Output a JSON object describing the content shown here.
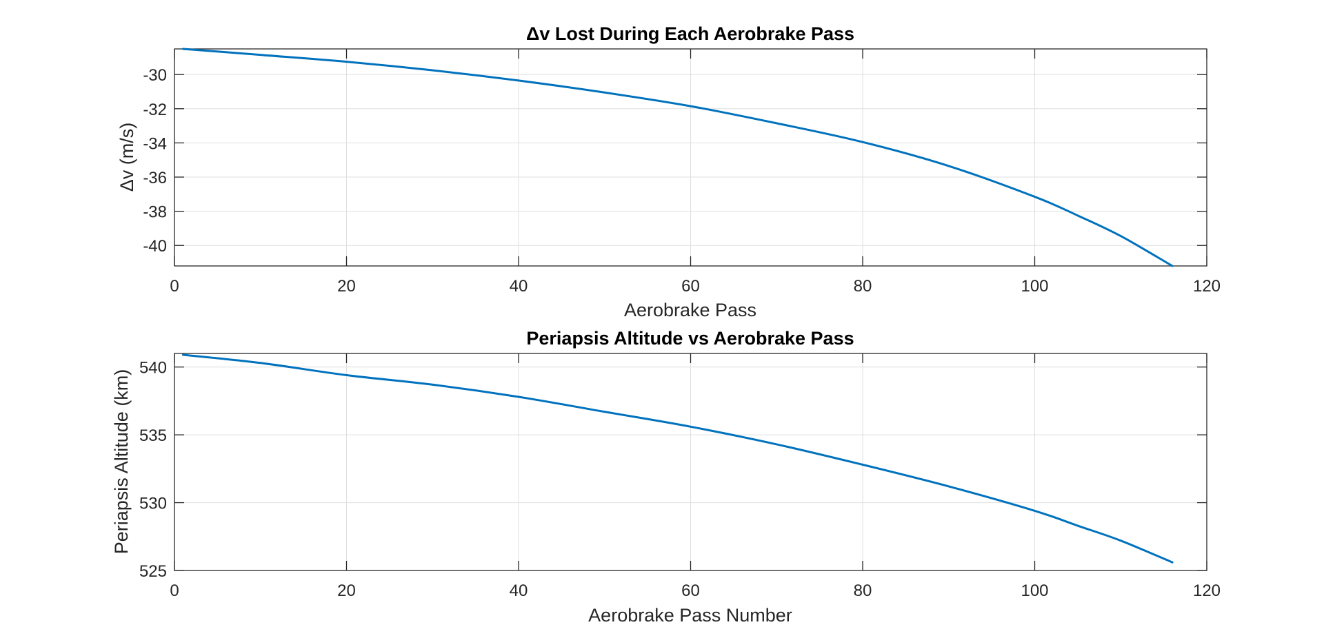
{
  "chart_data": [
    {
      "type": "line",
      "title": "Δv Lost During Each Aerobrake Pass",
      "xlabel": "Aerobrake Pass",
      "ylabel": "Δv (m/s)",
      "xlim": [
        0,
        120
      ],
      "ylim": [
        -41.2,
        -28.5
      ],
      "xticks": [
        0,
        20,
        40,
        60,
        80,
        100,
        120
      ],
      "yticks": [
        -40,
        -38,
        -36,
        -34,
        -32,
        -30
      ],
      "grid": true,
      "color": "#0072bd",
      "series": [
        {
          "x": [
            1,
            10,
            20,
            30,
            40,
            50,
            60,
            70,
            80,
            90,
            100,
            105,
            110,
            116
          ],
          "y": [
            -28.5,
            -28.85,
            -29.25,
            -29.75,
            -30.35,
            -31.05,
            -31.85,
            -32.85,
            -33.95,
            -35.35,
            -37.15,
            -38.25,
            -39.45,
            -41.2
          ]
        }
      ]
    },
    {
      "type": "line",
      "title": "Periapsis Altitude vs Aerobrake Pass",
      "xlabel": "Aerobrake Pass Number",
      "ylabel": "Periapsis Altitude (km)",
      "xlim": [
        0,
        120
      ],
      "ylim": [
        525,
        541
      ],
      "xticks": [
        0,
        20,
        40,
        60,
        80,
        100,
        120
      ],
      "yticks": [
        525,
        530,
        535,
        540
      ],
      "grid": true,
      "color": "#0072bd",
      "series": [
        {
          "x": [
            1,
            10,
            20,
            30,
            40,
            50,
            60,
            70,
            80,
            90,
            100,
            105,
            110,
            116
          ],
          "y": [
            540.9,
            540.3,
            539.4,
            538.7,
            537.8,
            536.7,
            535.6,
            534.3,
            532.8,
            531.2,
            529.4,
            528.3,
            527.2,
            525.6
          ]
        }
      ]
    }
  ]
}
